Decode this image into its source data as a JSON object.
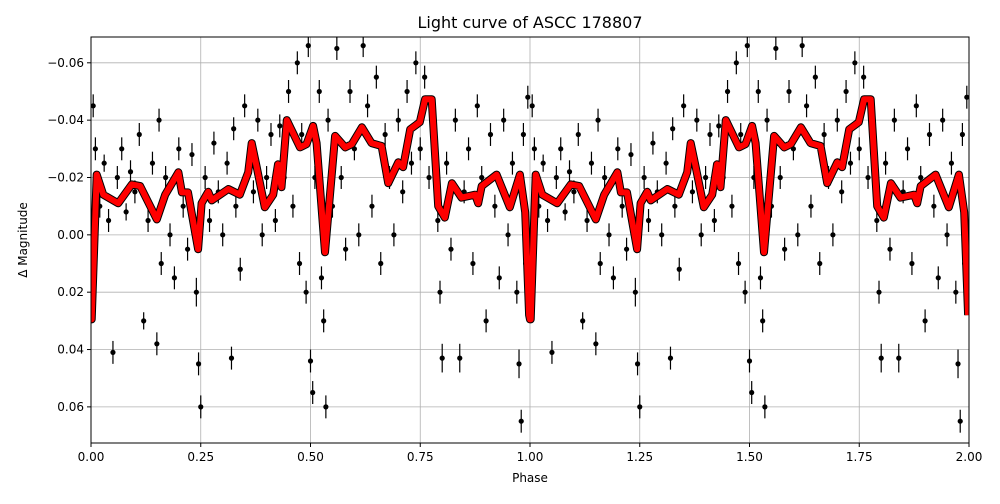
{
  "chart_data": {
    "type": "scatter",
    "title": "Light curve of ASCC 178807",
    "xlabel": "Phase",
    "ylabel": "Δ Magnitude",
    "xlim": [
      0,
      2
    ],
    "ylim": [
      0.0726,
      -0.069
    ],
    "y_inverted": true,
    "grid": true,
    "x_ticks": [
      "0.00",
      "0.25",
      "0.50",
      "0.75",
      "1.00",
      "1.25",
      "1.50",
      "1.75",
      "2.00"
    ],
    "x_tick_values": [
      0,
      0.25,
      0.5,
      0.75,
      1.0,
      1.25,
      1.5,
      1.75,
      2.0
    ],
    "y_ticks": [
      "−0.06",
      "−0.04",
      "−0.02",
      "0.00",
      "0.02",
      "0.04",
      "0.06"
    ],
    "y_tick_values": [
      -0.06,
      -0.04,
      -0.02,
      0.0,
      0.02,
      0.04,
      0.06
    ],
    "phase_repeats": 2,
    "colors": {
      "observations": "#000000",
      "model": "#ff0000",
      "grid": "#b0b0b0"
    },
    "observations": {
      "columns": [
        "phase",
        "delta_mag",
        "error"
      ],
      "points": [
        [
          0.005,
          -0.045,
          0.004
        ],
        [
          0.01,
          -0.03,
          0.004
        ],
        [
          0.02,
          -0.01,
          0.004
        ],
        [
          0.03,
          -0.025,
          0.003
        ],
        [
          0.04,
          -0.005,
          0.004
        ],
        [
          0.05,
          0.041,
          0.004
        ],
        [
          0.06,
          -0.02,
          0.004
        ],
        [
          0.07,
          -0.03,
          0.004
        ],
        [
          0.08,
          -0.008,
          0.003
        ],
        [
          0.09,
          -0.022,
          0.004
        ],
        [
          0.1,
          -0.015,
          0.004
        ],
        [
          0.11,
          -0.035,
          0.004
        ],
        [
          0.12,
          0.03,
          0.003
        ],
        [
          0.13,
          -0.005,
          0.004
        ],
        [
          0.14,
          -0.025,
          0.004
        ],
        [
          0.15,
          0.038,
          0.004
        ],
        [
          0.155,
          -0.04,
          0.004
        ],
        [
          0.16,
          0.01,
          0.004
        ],
        [
          0.17,
          -0.02,
          0.004
        ],
        [
          0.18,
          0.0,
          0.004
        ],
        [
          0.19,
          0.015,
          0.004
        ],
        [
          0.2,
          -0.03,
          0.004
        ],
        [
          0.21,
          -0.01,
          0.004
        ],
        [
          0.22,
          0.005,
          0.004
        ],
        [
          0.23,
          -0.028,
          0.004
        ],
        [
          0.24,
          0.02,
          0.005
        ],
        [
          0.245,
          0.045,
          0.004
        ],
        [
          0.25,
          0.06,
          0.004
        ],
        [
          0.26,
          -0.02,
          0.004
        ],
        [
          0.27,
          -0.005,
          0.004
        ],
        [
          0.28,
          -0.032,
          0.004
        ],
        [
          0.29,
          -0.015,
          0.004
        ],
        [
          0.3,
          0.0,
          0.004
        ],
        [
          0.31,
          -0.025,
          0.004
        ],
        [
          0.32,
          0.043,
          0.004
        ],
        [
          0.325,
          -0.037,
          0.004
        ],
        [
          0.33,
          -0.01,
          0.004
        ],
        [
          0.34,
          0.012,
          0.004
        ],
        [
          0.35,
          -0.045,
          0.004
        ],
        [
          0.36,
          -0.028,
          0.004
        ],
        [
          0.37,
          -0.015,
          0.004
        ],
        [
          0.38,
          -0.04,
          0.004
        ],
        [
          0.39,
          0.0,
          0.004
        ],
        [
          0.4,
          -0.02,
          0.004
        ],
        [
          0.41,
          -0.035,
          0.004
        ],
        [
          0.42,
          -0.005,
          0.004
        ],
        [
          0.43,
          -0.038,
          0.004
        ],
        [
          0.44,
          -0.02,
          0.004
        ],
        [
          0.45,
          -0.05,
          0.004
        ],
        [
          0.46,
          -0.01,
          0.004
        ],
        [
          0.47,
          -0.06,
          0.004
        ],
        [
          0.475,
          0.01,
          0.004
        ],
        [
          0.48,
          -0.035,
          0.004
        ],
        [
          0.49,
          0.02,
          0.004
        ],
        [
          0.495,
          -0.066,
          0.004
        ],
        [
          0.5,
          0.044,
          0.004
        ],
        [
          0.505,
          0.055,
          0.004
        ],
        [
          0.51,
          -0.02,
          0.004
        ],
        [
          0.52,
          -0.05,
          0.004
        ],
        [
          0.525,
          0.015,
          0.004
        ],
        [
          0.53,
          0.03,
          0.004
        ],
        [
          0.535,
          0.06,
          0.004
        ],
        [
          0.54,
          -0.04,
          0.004
        ],
        [
          0.55,
          -0.01,
          0.004
        ],
        [
          0.56,
          -0.065,
          0.004
        ],
        [
          0.57,
          -0.02,
          0.004
        ],
        [
          0.58,
          0.005,
          0.004
        ],
        [
          0.59,
          -0.05,
          0.004
        ],
        [
          0.6,
          -0.03,
          0.004
        ],
        [
          0.61,
          0.0,
          0.004
        ],
        [
          0.62,
          -0.066,
          0.004
        ],
        [
          0.63,
          -0.045,
          0.004
        ],
        [
          0.64,
          -0.01,
          0.004
        ],
        [
          0.65,
          -0.055,
          0.004
        ],
        [
          0.66,
          0.01,
          0.004
        ],
        [
          0.67,
          -0.035,
          0.004
        ],
        [
          0.68,
          -0.02,
          0.004
        ],
        [
          0.69,
          0.0,
          0.004
        ],
        [
          0.7,
          -0.04,
          0.004
        ],
        [
          0.71,
          -0.015,
          0.004
        ],
        [
          0.72,
          -0.05,
          0.004
        ],
        [
          0.73,
          -0.025,
          0.004
        ],
        [
          0.74,
          -0.06,
          0.004
        ],
        [
          0.75,
          -0.03,
          0.004
        ],
        [
          0.76,
          -0.055,
          0.004
        ],
        [
          0.77,
          -0.02,
          0.004
        ],
        [
          0.78,
          -0.04,
          0.004
        ],
        [
          0.79,
          -0.005,
          0.004
        ],
        [
          0.795,
          0.02,
          0.004
        ],
        [
          0.8,
          0.043,
          0.005
        ],
        [
          0.81,
          -0.025,
          0.004
        ],
        [
          0.82,
          0.005,
          0.004
        ],
        [
          0.83,
          -0.04,
          0.004
        ],
        [
          0.84,
          0.043,
          0.005
        ],
        [
          0.85,
          -0.015,
          0.004
        ],
        [
          0.86,
          -0.03,
          0.004
        ],
        [
          0.87,
          0.01,
          0.004
        ],
        [
          0.88,
          -0.045,
          0.004
        ],
        [
          0.89,
          -0.02,
          0.004
        ],
        [
          0.9,
          0.03,
          0.004
        ],
        [
          0.91,
          -0.035,
          0.004
        ],
        [
          0.92,
          -0.01,
          0.004
        ],
        [
          0.93,
          0.015,
          0.004
        ],
        [
          0.94,
          -0.04,
          0.004
        ],
        [
          0.95,
          0.0,
          0.004
        ],
        [
          0.96,
          -0.025,
          0.004
        ],
        [
          0.97,
          0.02,
          0.004
        ],
        [
          0.975,
          0.045,
          0.005
        ],
        [
          0.98,
          0.065,
          0.004
        ],
        [
          0.985,
          -0.035,
          0.004
        ],
        [
          0.99,
          0.01,
          0.004
        ],
        [
          0.995,
          -0.048,
          0.004
        ]
      ]
    },
    "model": {
      "columns": [
        "phase",
        "delta_mag"
      ],
      "points": [
        [
          0.0,
          0.0295
        ],
        [
          0.0015,
          0.0295
        ],
        [
          0.013,
          -0.021
        ],
        [
          0.028,
          -0.014
        ],
        [
          0.062,
          -0.011
        ],
        [
          0.093,
          -0.0176
        ],
        [
          0.112,
          -0.017
        ],
        [
          0.15,
          -0.0054
        ],
        [
          0.169,
          -0.014
        ],
        [
          0.199,
          -0.0218
        ],
        [
          0.207,
          -0.0148
        ],
        [
          0.221,
          -0.0148
        ],
        [
          0.244,
          0.005
        ],
        [
          0.252,
          -0.011
        ],
        [
          0.267,
          -0.015
        ],
        [
          0.275,
          -0.012
        ],
        [
          0.313,
          -0.016
        ],
        [
          0.339,
          -0.014
        ],
        [
          0.358,
          -0.0218
        ],
        [
          0.366,
          -0.032
        ],
        [
          0.377,
          -0.024
        ],
        [
          0.396,
          -0.0096
        ],
        [
          0.415,
          -0.014
        ],
        [
          0.426,
          -0.0246
        ],
        [
          0.434,
          -0.0166
        ],
        [
          0.446,
          -0.04
        ],
        [
          0.476,
          -0.0305
        ],
        [
          0.491,
          -0.0316
        ],
        [
          0.506,
          -0.038
        ],
        [
          0.514,
          -0.032
        ],
        [
          0.533,
          0.0061
        ],
        [
          0.556,
          -0.0345
        ],
        [
          0.579,
          -0.0305
        ],
        [
          0.594,
          -0.0316
        ],
        [
          0.617,
          -0.0375
        ],
        [
          0.639,
          -0.032
        ],
        [
          0.662,
          -0.031
        ],
        [
          0.677,
          -0.018
        ],
        [
          0.7,
          -0.0253
        ],
        [
          0.711,
          -0.0236
        ],
        [
          0.727,
          -0.0368
        ],
        [
          0.749,
          -0.0393
        ],
        [
          0.761,
          -0.0473
        ],
        [
          0.776,
          -0.0473
        ],
        [
          0.791,
          -0.01
        ],
        [
          0.806,
          -0.006
        ],
        [
          0.822,
          -0.018
        ],
        [
          0.844,
          -0.013
        ],
        [
          0.875,
          -0.014
        ],
        [
          0.882,
          -0.011
        ],
        [
          0.89,
          -0.017
        ],
        [
          0.924,
          -0.021
        ],
        [
          0.954,
          -0.0096
        ],
        [
          0.977,
          -0.021
        ],
        [
          0.989,
          -0.0079
        ],
        [
          0.998,
          0.028
        ]
      ]
    }
  }
}
